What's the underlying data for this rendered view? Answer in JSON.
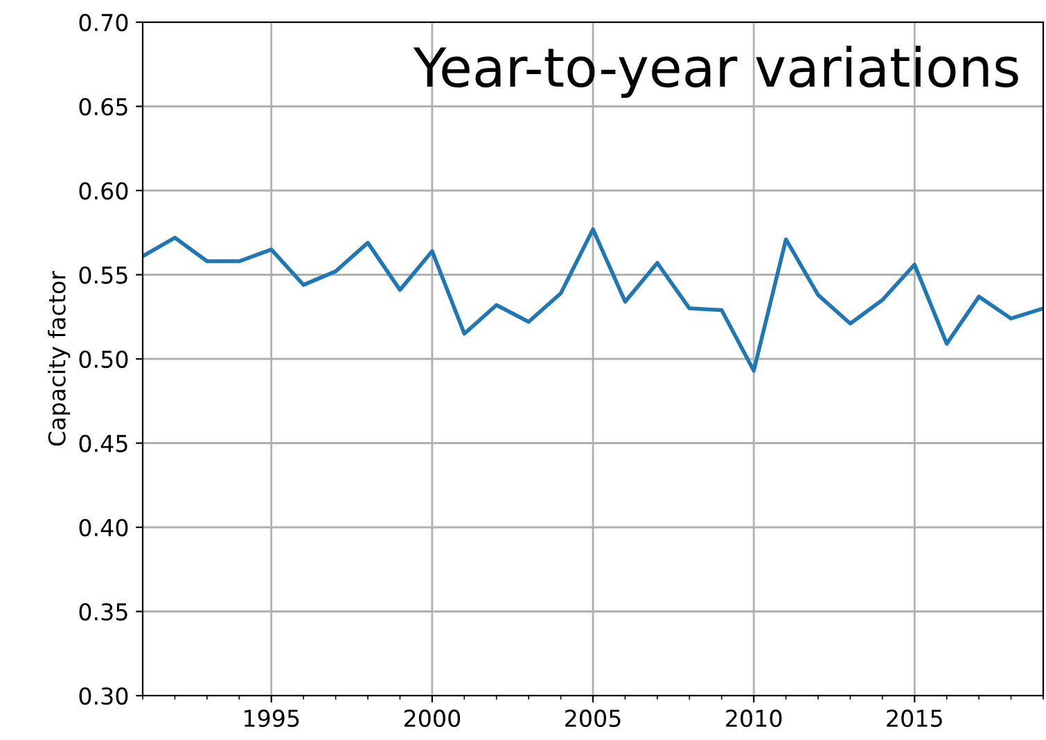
{
  "chart_data": {
    "type": "line",
    "ylabel": "Capacity factor",
    "annotations": [
      "Year-to-year variations"
    ],
    "x": [
      1991,
      1992,
      1993,
      1994,
      1995,
      1996,
      1997,
      1998,
      1999,
      2000,
      2001,
      2002,
      2003,
      2004,
      2005,
      2006,
      2007,
      2008,
      2009,
      2010,
      2011,
      2012,
      2013,
      2014,
      2015,
      2016,
      2017,
      2018,
      2019
    ],
    "series": [
      {
        "color": "#1f77b4",
        "values": [
          0.561,
          0.572,
          0.558,
          0.558,
          0.565,
          0.544,
          0.552,
          0.569,
          0.541,
          0.564,
          0.515,
          0.532,
          0.522,
          0.539,
          0.577,
          0.534,
          0.557,
          0.53,
          0.529,
          0.493,
          0.571,
          0.538,
          0.521,
          0.535,
          0.556,
          0.509,
          0.537,
          0.524,
          0.53
        ]
      }
    ],
    "xlim": [
      1991,
      2019
    ],
    "xticks": [
      1995,
      2000,
      2005,
      2010,
      2015
    ],
    "ylim": [
      0.3,
      0.7
    ],
    "yticks": [
      {
        "value": 0.3,
        "label": "0.30"
      },
      {
        "value": 0.35,
        "label": "0.35"
      },
      {
        "value": 0.4,
        "label": "0.40"
      },
      {
        "value": 0.45,
        "label": "0.45"
      },
      {
        "value": 0.5,
        "label": "0.50"
      },
      {
        "value": 0.55,
        "label": "0.55"
      },
      {
        "value": 0.6,
        "label": "0.60"
      },
      {
        "value": 0.65,
        "label": "0.65"
      },
      {
        "value": 0.7,
        "label": "0.70"
      }
    ],
    "grid": true,
    "marker": "none",
    "line_style": "solid"
  }
}
